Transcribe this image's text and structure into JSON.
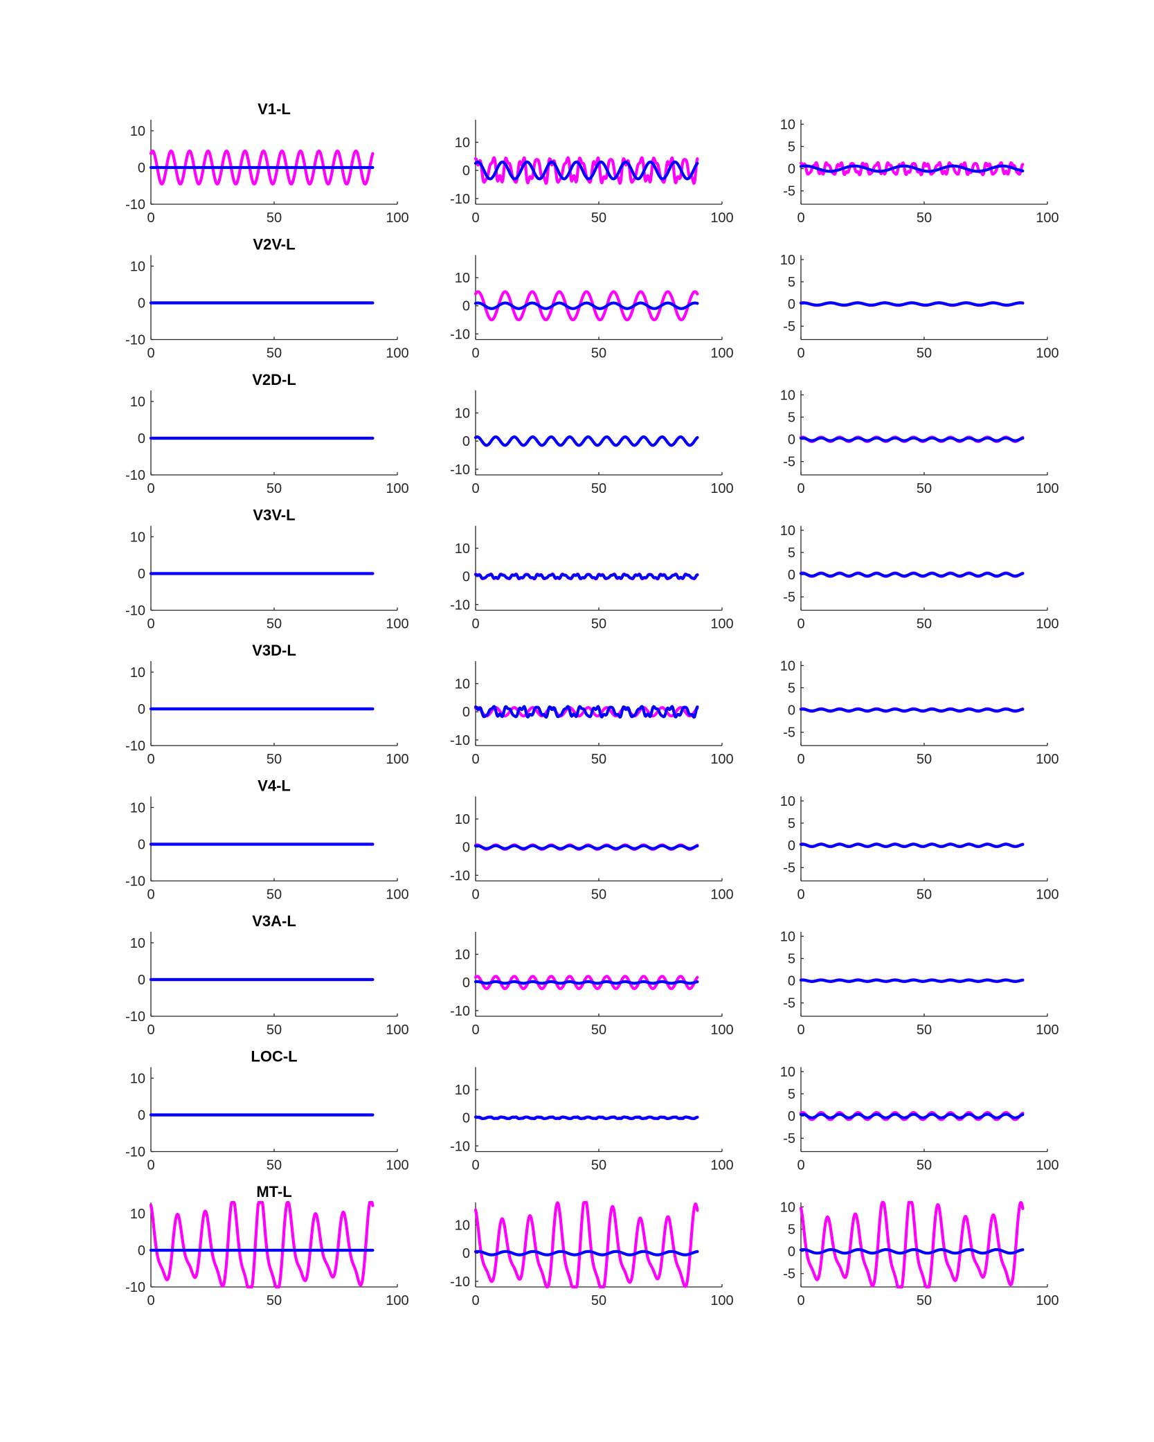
{
  "figure": {
    "series_colors": {
      "magenta": "#ff00ff",
      "blue": "#0000ff"
    },
    "axis_color": "#262626"
  },
  "chart_data": [
    {
      "type": "line",
      "row": 0,
      "col": 0,
      "title": "V1-L",
      "xlim": [
        0,
        100
      ],
      "ylim": [
        -10,
        13
      ],
      "xticks": [
        0,
        50,
        100
      ],
      "yticks": [
        -10,
        0,
        10
      ],
      "series": [
        {
          "color": "#ff00ff",
          "x": [
            0,
            90
          ],
          "amp": 4.5,
          "period": 7.5,
          "shape": "osc"
        },
        {
          "color": "#0000ff",
          "x": [
            0,
            90
          ],
          "amp": 0.0,
          "period": 10,
          "shape": "flat"
        }
      ]
    },
    {
      "type": "line",
      "row": 0,
      "col": 1,
      "title": "",
      "xlim": [
        0,
        100
      ],
      "ylim": [
        -12,
        18
      ],
      "xticks": [
        0,
        50,
        100
      ],
      "yticks": [
        -10,
        0,
        10
      ],
      "series": [
        {
          "color": "#ff00ff",
          "x": [
            0,
            90
          ],
          "amp": 6.0,
          "period": 6,
          "shape": "noisy"
        },
        {
          "color": "#0000ff",
          "x": [
            0,
            90
          ],
          "amp": 3.0,
          "period": 10,
          "shape": "osc"
        }
      ]
    },
    {
      "type": "line",
      "row": 0,
      "col": 2,
      "title": "",
      "xlim": [
        0,
        100
      ],
      "ylim": [
        -8,
        11
      ],
      "xticks": [
        0,
        50,
        100
      ],
      "yticks": [
        -5,
        0,
        5,
        10
      ],
      "series": [
        {
          "color": "#ff00ff",
          "x": [
            0,
            90
          ],
          "amp": 1.8,
          "period": 5,
          "shape": "noisy"
        },
        {
          "color": "#0000ff",
          "x": [
            0,
            90
          ],
          "amp": 0.6,
          "period": 20,
          "shape": "osc"
        }
      ]
    },
    {
      "type": "line",
      "row": 1,
      "col": 0,
      "title": "V2V-L",
      "xlim": [
        0,
        100
      ],
      "ylim": [
        -10,
        13
      ],
      "xticks": [
        0,
        50,
        100
      ],
      "yticks": [
        -10,
        0,
        10
      ],
      "series": [
        {
          "color": "#ff00ff",
          "x": [
            0,
            90
          ],
          "amp": 0.0,
          "period": 10,
          "shape": "flat"
        },
        {
          "color": "#0000ff",
          "x": [
            0,
            90
          ],
          "amp": 0.0,
          "period": 10,
          "shape": "flat"
        }
      ]
    },
    {
      "type": "line",
      "row": 1,
      "col": 1,
      "title": "",
      "xlim": [
        0,
        100
      ],
      "ylim": [
        -12,
        18
      ],
      "xticks": [
        0,
        50,
        100
      ],
      "yticks": [
        -10,
        0,
        10
      ],
      "series": [
        {
          "color": "#ff00ff",
          "x": [
            0,
            90
          ],
          "amp": 5.0,
          "period": 11,
          "shape": "osc"
        },
        {
          "color": "#0000ff",
          "x": [
            0,
            90
          ],
          "amp": 1.0,
          "period": 11,
          "shape": "osc"
        }
      ]
    },
    {
      "type": "line",
      "row": 1,
      "col": 2,
      "title": "",
      "xlim": [
        0,
        100
      ],
      "ylim": [
        -8,
        11
      ],
      "xticks": [
        0,
        50,
        100
      ],
      "yticks": [
        -5,
        0,
        5,
        10
      ],
      "series": [
        {
          "color": "#ff00ff",
          "x": [
            0,
            90
          ],
          "amp": 0.3,
          "period": 11,
          "shape": "osc"
        },
        {
          "color": "#0000ff",
          "x": [
            0,
            90
          ],
          "amp": 0.25,
          "period": 11,
          "shape": "osc"
        }
      ]
    },
    {
      "type": "line",
      "row": 2,
      "col": 0,
      "title": "V2D-L",
      "xlim": [
        0,
        100
      ],
      "ylim": [
        -10,
        13
      ],
      "xticks": [
        0,
        50,
        100
      ],
      "yticks": [
        -10,
        0,
        10
      ],
      "series": [
        {
          "color": "#ff00ff",
          "x": [
            0,
            90
          ],
          "amp": 0.0,
          "period": 10,
          "shape": "flat"
        },
        {
          "color": "#0000ff",
          "x": [
            0,
            90
          ],
          "amp": 0.0,
          "period": 10,
          "shape": "flat"
        }
      ]
    },
    {
      "type": "line",
      "row": 2,
      "col": 1,
      "title": "",
      "xlim": [
        0,
        100
      ],
      "ylim": [
        -12,
        18
      ],
      "xticks": [
        0,
        50,
        100
      ],
      "yticks": [
        -10,
        0,
        10
      ],
      "series": [
        {
          "color": "#ff00ff",
          "x": [
            0,
            90
          ],
          "amp": 1.5,
          "period": 7.5,
          "shape": "osc"
        },
        {
          "color": "#0000ff",
          "x": [
            0,
            90
          ],
          "amp": 1.5,
          "period": 7.5,
          "shape": "osc"
        }
      ]
    },
    {
      "type": "line",
      "row": 2,
      "col": 2,
      "title": "",
      "xlim": [
        0,
        100
      ],
      "ylim": [
        -8,
        11
      ],
      "xticks": [
        0,
        50,
        100
      ],
      "yticks": [
        -5,
        0,
        5,
        10
      ],
      "series": [
        {
          "color": "#ff00ff",
          "x": [
            0,
            90
          ],
          "amp": 0.5,
          "period": 7.5,
          "shape": "osc"
        },
        {
          "color": "#0000ff",
          "x": [
            0,
            90
          ],
          "amp": 0.3,
          "period": 7.5,
          "shape": "osc"
        }
      ]
    },
    {
      "type": "line",
      "row": 3,
      "col": 0,
      "title": "V3V-L",
      "xlim": [
        0,
        100
      ],
      "ylim": [
        -10,
        13
      ],
      "xticks": [
        0,
        50,
        100
      ],
      "yticks": [
        -10,
        0,
        10
      ],
      "series": [
        {
          "color": "#ff00ff",
          "x": [
            0,
            90
          ],
          "amp": 0.0,
          "period": 10,
          "shape": "flat"
        },
        {
          "color": "#0000ff",
          "x": [
            0,
            90
          ],
          "amp": 0.0,
          "period": 10,
          "shape": "flat"
        }
      ]
    },
    {
      "type": "line",
      "row": 3,
      "col": 1,
      "title": "",
      "xlim": [
        0,
        100
      ],
      "ylim": [
        -12,
        18
      ],
      "xticks": [
        0,
        50,
        100
      ],
      "yticks": [
        -10,
        0,
        10
      ],
      "series": [
        {
          "color": "#ff00ff",
          "x": [
            0,
            90
          ],
          "amp": 1.2,
          "period": 5,
          "shape": "noisy"
        },
        {
          "color": "#0000ff",
          "x": [
            0,
            90
          ],
          "amp": 1.0,
          "period": 5,
          "shape": "noisy"
        }
      ]
    },
    {
      "type": "line",
      "row": 3,
      "col": 2,
      "title": "",
      "xlim": [
        0,
        100
      ],
      "ylim": [
        -8,
        11
      ],
      "xticks": [
        0,
        50,
        100
      ],
      "yticks": [
        -5,
        0,
        5,
        10
      ],
      "series": [
        {
          "color": "#ff00ff",
          "x": [
            0,
            90
          ],
          "amp": 0.4,
          "period": 7.5,
          "shape": "osc"
        },
        {
          "color": "#0000ff",
          "x": [
            0,
            90
          ],
          "amp": 0.3,
          "period": 7.5,
          "shape": "osc"
        }
      ]
    },
    {
      "type": "line",
      "row": 4,
      "col": 0,
      "title": "V3D-L",
      "xlim": [
        0,
        100
      ],
      "ylim": [
        -10,
        13
      ],
      "xticks": [
        0,
        50,
        100
      ],
      "yticks": [
        -10,
        0,
        10
      ],
      "series": [
        {
          "color": "#ff00ff",
          "x": [
            0,
            90
          ],
          "amp": 0.0,
          "period": 10,
          "shape": "flat"
        },
        {
          "color": "#0000ff",
          "x": [
            0,
            90
          ],
          "amp": 0.0,
          "period": 10,
          "shape": "flat"
        }
      ]
    },
    {
      "type": "line",
      "row": 4,
      "col": 1,
      "title": "",
      "xlim": [
        0,
        100
      ],
      "ylim": [
        -12,
        18
      ],
      "xticks": [
        0,
        50,
        100
      ],
      "yticks": [
        -10,
        0,
        10
      ],
      "series": [
        {
          "color": "#ff00ff",
          "x": [
            0,
            90
          ],
          "amp": 1.5,
          "period": 7.5,
          "shape": "osc"
        },
        {
          "color": "#0000ff",
          "x": [
            0,
            90
          ],
          "amp": 2.5,
          "period": 6,
          "shape": "noisy"
        }
      ]
    },
    {
      "type": "line",
      "row": 4,
      "col": 2,
      "title": "",
      "xlim": [
        0,
        100
      ],
      "ylim": [
        -8,
        11
      ],
      "xticks": [
        0,
        50,
        100
      ],
      "yticks": [
        -5,
        0,
        5,
        10
      ],
      "series": [
        {
          "color": "#ff00ff",
          "x": [
            0,
            90
          ],
          "amp": 0.3,
          "period": 7.5,
          "shape": "osc"
        },
        {
          "color": "#0000ff",
          "x": [
            0,
            90
          ],
          "amp": 0.2,
          "period": 7.5,
          "shape": "osc"
        }
      ]
    },
    {
      "type": "line",
      "row": 5,
      "col": 0,
      "title": "V4-L",
      "xlim": [
        0,
        100
      ],
      "ylim": [
        -10,
        13
      ],
      "xticks": [
        0,
        50,
        100
      ],
      "yticks": [
        -10,
        0,
        10
      ],
      "series": [
        {
          "color": "#ff00ff",
          "x": [
            0,
            90
          ],
          "amp": 0.0,
          "period": 10,
          "shape": "flat"
        },
        {
          "color": "#0000ff",
          "x": [
            0,
            90
          ],
          "amp": 0.0,
          "period": 10,
          "shape": "flat"
        }
      ]
    },
    {
      "type": "line",
      "row": 5,
      "col": 1,
      "title": "",
      "xlim": [
        0,
        100
      ],
      "ylim": [
        -12,
        18
      ],
      "xticks": [
        0,
        50,
        100
      ],
      "yticks": [
        -10,
        0,
        10
      ],
      "series": [
        {
          "color": "#ff00ff",
          "x": [
            0,
            90
          ],
          "amp": 0.8,
          "period": 7.5,
          "shape": "osc"
        },
        {
          "color": "#0000ff",
          "x": [
            0,
            90
          ],
          "amp": 0.5,
          "period": 7.5,
          "shape": "osc"
        }
      ]
    },
    {
      "type": "line",
      "row": 5,
      "col": 2,
      "title": "",
      "xlim": [
        0,
        100
      ],
      "ylim": [
        -8,
        11
      ],
      "xticks": [
        0,
        50,
        100
      ],
      "yticks": [
        -5,
        0,
        5,
        10
      ],
      "series": [
        {
          "color": "#ff00ff",
          "x": [
            0,
            90
          ],
          "amp": 0.3,
          "period": 7.5,
          "shape": "osc"
        },
        {
          "color": "#0000ff",
          "x": [
            0,
            90
          ],
          "amp": 0.25,
          "period": 7.5,
          "shape": "osc"
        }
      ]
    },
    {
      "type": "line",
      "row": 6,
      "col": 0,
      "title": "V3A-L",
      "xlim": [
        0,
        100
      ],
      "ylim": [
        -10,
        13
      ],
      "xticks": [
        0,
        50,
        100
      ],
      "yticks": [
        -10,
        0,
        10
      ],
      "series": [
        {
          "color": "#ff00ff",
          "x": [
            0,
            90
          ],
          "amp": 0.0,
          "period": 10,
          "shape": "flat"
        },
        {
          "color": "#0000ff",
          "x": [
            0,
            90
          ],
          "amp": 0.0,
          "period": 10,
          "shape": "flat"
        }
      ]
    },
    {
      "type": "line",
      "row": 6,
      "col": 1,
      "title": "",
      "xlim": [
        0,
        100
      ],
      "ylim": [
        -12,
        18
      ],
      "xticks": [
        0,
        50,
        100
      ],
      "yticks": [
        -10,
        0,
        10
      ],
      "series": [
        {
          "color": "#ff00ff",
          "x": [
            0,
            90
          ],
          "amp": 2.2,
          "period": 7.5,
          "shape": "osc"
        },
        {
          "color": "#0000ff",
          "x": [
            0,
            90
          ],
          "amp": 0.3,
          "period": 7.5,
          "shape": "osc"
        }
      ]
    },
    {
      "type": "line",
      "row": 6,
      "col": 2,
      "title": "",
      "xlim": [
        0,
        100
      ],
      "ylim": [
        -8,
        11
      ],
      "xticks": [
        0,
        50,
        100
      ],
      "yticks": [
        -5,
        0,
        5,
        10
      ],
      "series": [
        {
          "color": "#ff00ff",
          "x": [
            0,
            90
          ],
          "amp": 0.2,
          "period": 7.5,
          "shape": "osc"
        },
        {
          "color": "#0000ff",
          "x": [
            0,
            90
          ],
          "amp": 0.15,
          "period": 7.5,
          "shape": "osc"
        }
      ]
    },
    {
      "type": "line",
      "row": 7,
      "col": 0,
      "title": "LOC-L",
      "xlim": [
        0,
        100
      ],
      "ylim": [
        -10,
        13
      ],
      "xticks": [
        0,
        50,
        100
      ],
      "yticks": [
        -10,
        0,
        10
      ],
      "series": [
        {
          "color": "#ff00ff",
          "x": [
            0,
            90
          ],
          "amp": 0.0,
          "period": 10,
          "shape": "flat"
        },
        {
          "color": "#0000ff",
          "x": [
            0,
            90
          ],
          "amp": 0.0,
          "period": 10,
          "shape": "flat"
        }
      ]
    },
    {
      "type": "line",
      "row": 7,
      "col": 1,
      "title": "",
      "xlim": [
        0,
        100
      ],
      "ylim": [
        -12,
        18
      ],
      "xticks": [
        0,
        50,
        100
      ],
      "yticks": [
        -10,
        0,
        10
      ],
      "series": [
        {
          "color": "#ff00ff",
          "x": [
            0,
            90
          ],
          "amp": 0.3,
          "period": 5,
          "shape": "osc"
        },
        {
          "color": "#0000ff",
          "x": [
            0,
            90
          ],
          "amp": 0.4,
          "period": 5,
          "shape": "noisy"
        }
      ]
    },
    {
      "type": "line",
      "row": 7,
      "col": 2,
      "title": "",
      "xlim": [
        0,
        100
      ],
      "ylim": [
        -8,
        11
      ],
      "xticks": [
        0,
        50,
        100
      ],
      "yticks": [
        -5,
        0,
        5,
        10
      ],
      "series": [
        {
          "color": "#ff00ff",
          "x": [
            0,
            90
          ],
          "amp": 0.8,
          "period": 7.5,
          "shape": "osc"
        },
        {
          "color": "#0000ff",
          "x": [
            0,
            90
          ],
          "amp": 0.4,
          "period": 7.5,
          "shape": "osc"
        }
      ]
    },
    {
      "type": "line",
      "row": 8,
      "col": 0,
      "title": "MT-L",
      "xlim": [
        0,
        100
      ],
      "ylim": [
        -10,
        13
      ],
      "xticks": [
        0,
        50,
        100
      ],
      "yticks": [
        -10,
        0,
        10
      ],
      "series": [
        {
          "color": "#ff00ff",
          "x": [
            0,
            90
          ],
          "amp": 12.0,
          "period": 11.2,
          "shape": "mt"
        },
        {
          "color": "#0000ff",
          "x": [
            0,
            90
          ],
          "amp": 0.0,
          "period": 10,
          "shape": "flat"
        }
      ]
    },
    {
      "type": "line",
      "row": 8,
      "col": 1,
      "title": "",
      "xlim": [
        0,
        100
      ],
      "ylim": [
        -12,
        18
      ],
      "xticks": [
        0,
        50,
        100
      ],
      "yticks": [
        -10,
        0,
        10
      ],
      "series": [
        {
          "color": "#ff00ff",
          "x": [
            0,
            90
          ],
          "amp": 15.0,
          "period": 11.2,
          "shape": "mt"
        },
        {
          "color": "#0000ff",
          "x": [
            0,
            90
          ],
          "amp": 0.6,
          "period": 11.2,
          "shape": "osc"
        }
      ]
    },
    {
      "type": "line",
      "row": 8,
      "col": 2,
      "title": "",
      "xlim": [
        0,
        100
      ],
      "ylim": [
        -8,
        11
      ],
      "xticks": [
        0,
        50,
        100
      ],
      "yticks": [
        -5,
        0,
        5,
        10
      ],
      "series": [
        {
          "color": "#ff00ff",
          "x": [
            0,
            90
          ],
          "amp": 9.5,
          "period": 11.2,
          "shape": "mt"
        },
        {
          "color": "#0000ff",
          "x": [
            0,
            90
          ],
          "amp": 0.4,
          "period": 11.2,
          "shape": "osc"
        }
      ]
    }
  ]
}
